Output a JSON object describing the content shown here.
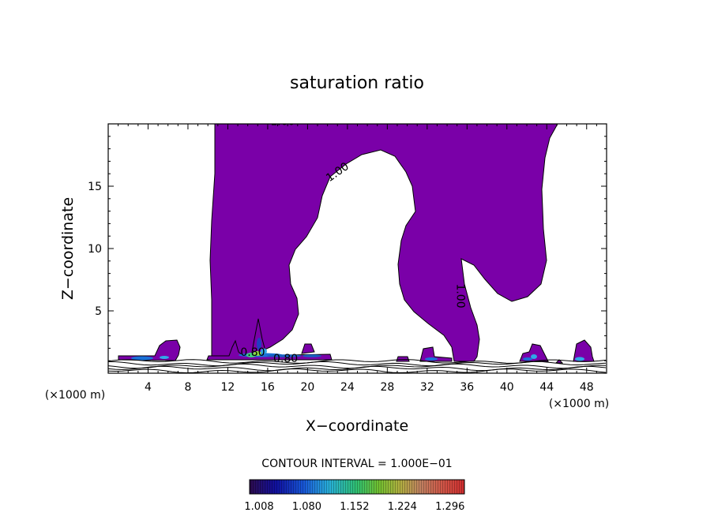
{
  "chart_data": {
    "type": "contour",
    "title": "saturation ratio",
    "xlabel": "X−coordinate",
    "ylabel": "Z−coordinate",
    "x_unit": "(×1000 m)",
    "y_unit": "(×1000 m)",
    "xlim": [
      0,
      50
    ],
    "ylim": [
      0,
      20
    ],
    "x_ticks": [
      4,
      8,
      12,
      16,
      20,
      24,
      28,
      32,
      36,
      40,
      44,
      48
    ],
    "y_ticks": [
      5,
      10,
      15
    ],
    "contour_labels": [
      {
        "text": "1.00",
        "x": 17.5,
        "y": 19.9,
        "rotate": 0
      },
      {
        "text": "1.00",
        "x": 23.2,
        "y": 15.9,
        "rotate": -35
      },
      {
        "text": "1.00",
        "x": 35.0,
        "y": 6.2,
        "rotate": 90
      },
      {
        "text": "0.80",
        "x": 17.8,
        "y": 0.9,
        "rotate": 0
      },
      {
        "text": "0.80",
        "x": 14.5,
        "y": 1.4,
        "rotate": 0
      }
    ],
    "contour_interval_text": "CONTOUR INTERVAL = 1.000E−01",
    "colorbar": {
      "labels": [
        "1.008",
        "1.080",
        "1.152",
        "1.224",
        "1.296"
      ],
      "min": 1.008,
      "max": 1.332
    },
    "fill_color": "#7a00a8"
  }
}
